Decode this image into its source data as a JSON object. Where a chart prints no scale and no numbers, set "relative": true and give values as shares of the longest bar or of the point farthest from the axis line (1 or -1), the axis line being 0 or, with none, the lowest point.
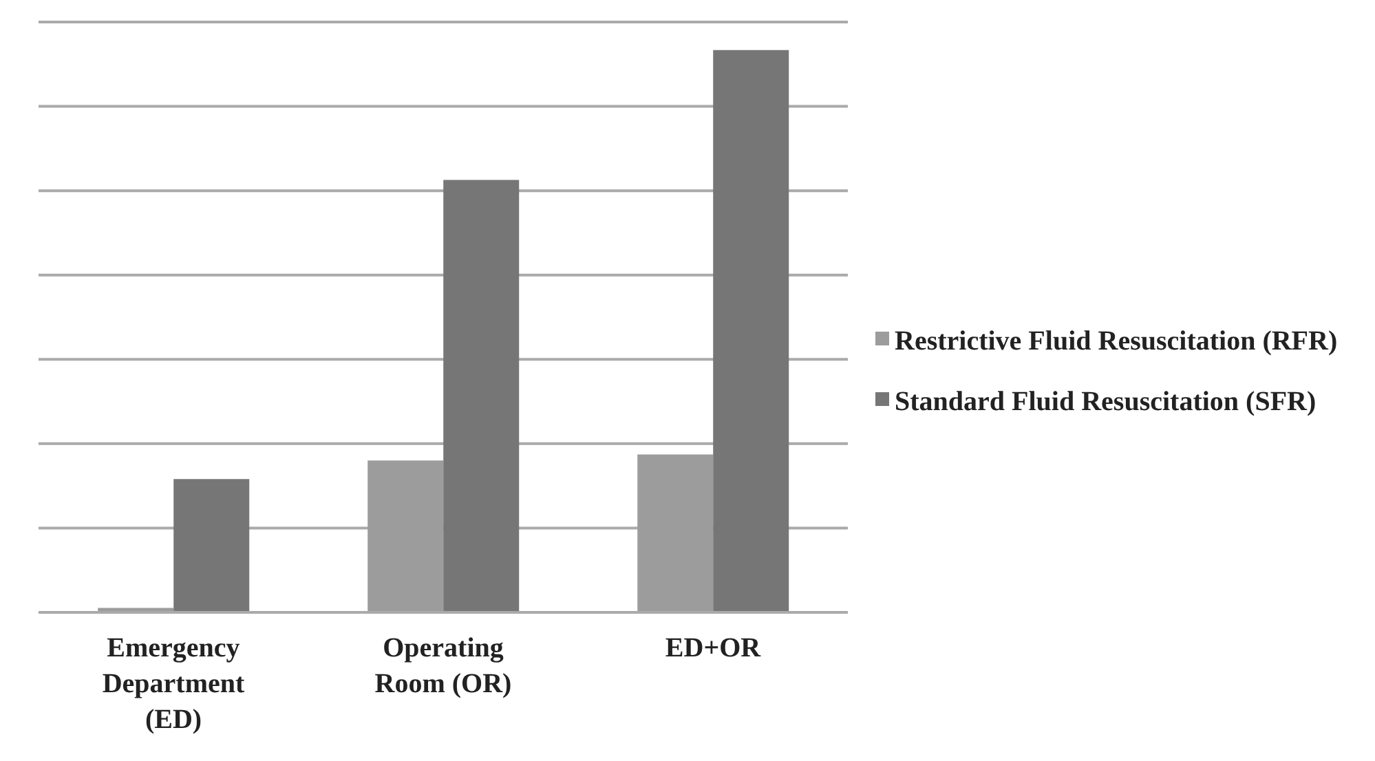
{
  "chart_data": {
    "type": "bar",
    "relative": true,
    "categories": [
      "Emergency Department (ED)",
      "Operating Room (OR)",
      "ED+OR"
    ],
    "series": [
      {
        "name": "Restrictive Fluid Resuscitation (RFR)",
        "color": "#9c9c9c",
        "values": [
          0.008,
          0.27,
          0.281
        ]
      },
      {
        "name": "Standard Fluid Resuscitation (SFR)",
        "color": "#767676",
        "values": [
          0.237,
          0.769,
          1
        ]
      }
    ],
    "grid": "y",
    "legend": "right"
  }
}
